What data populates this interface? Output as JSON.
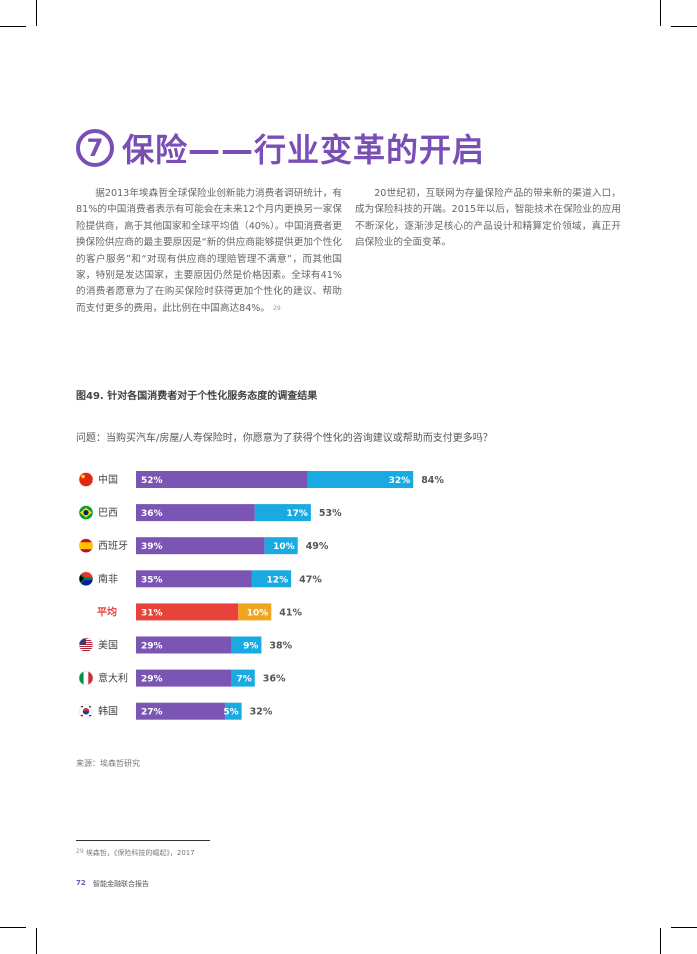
{
  "section": {
    "number": "7",
    "title": "保险——行业变革的开启"
  },
  "body": {
    "left_paragraph": "据2013年埃森哲全球保险业创新能力消费者调研统计，有81%的中国消费者表示有可能会在未来12个月内更换另一家保险提供商，高于其他国家和全球平均值（40%）。中国消费者更换保险供应商的最主要原因是“新的供应商能够提供更加个性化的客户服务”和“对现有供应商的理赔管理不满意”，而其他国家，特别是发达国家，主要原因仍然是价格因素。全球有41%的消费者愿意为了在购买保险时获得更加个性化的建议、帮助而支付更多的费用，此比例在中国高达84%。",
    "left_sup": "29",
    "right_paragraph": "20世纪初，互联网为存量保险产品的带来新的渠道入口，成为保险科技的开端。2015年以后，智能技术在保险业的应用不断深化，逐渐涉足核心的产品设计和精算定价领域，真正开启保险业的全面变革。"
  },
  "figure": {
    "title": "图49. 针对各国消费者对于个性化服务态度的调查结果",
    "question": "问题：当购买汽车/房屋/人寿保险时，你愿意为了获得个性化的咨询建议或帮助而支付更多吗？",
    "source": "来源：埃森哲研究"
  },
  "chart_data": {
    "type": "bar",
    "orientation": "horizontal",
    "stacked": true,
    "categories": [
      "中国",
      "巴西",
      "西班牙",
      "南非",
      "平均",
      "美国",
      "意大利",
      "韩国"
    ],
    "flags": [
      "china-flag-icon",
      "brazil-flag-icon",
      "spain-flag-icon",
      "south-africa-flag-icon",
      "",
      "usa-flag-icon",
      "italy-flag-icon",
      "korea-flag-icon"
    ],
    "series": [
      {
        "values": [
          52,
          36,
          39,
          35,
          31,
          29,
          29,
          27
        ]
      },
      {
        "values": [
          32,
          17,
          10,
          12,
          10,
          9,
          7,
          5
        ]
      }
    ],
    "totals": [
      84,
      53,
      49,
      47,
      41,
      38,
      36,
      32
    ],
    "highlight_category": "平均",
    "colors": {
      "series1": "#7b55b4",
      "series2": "#1aaae2",
      "avg_series1": "#e8433a",
      "avg_series2": "#f0a61c",
      "avg_label": "#e8433a"
    }
  },
  "footnote": {
    "marker": "29",
    "text": "埃森哲，《保险科技的崛起》，2017"
  },
  "footer": {
    "page_number": "72",
    "report_title": "智能金融联合报告"
  }
}
